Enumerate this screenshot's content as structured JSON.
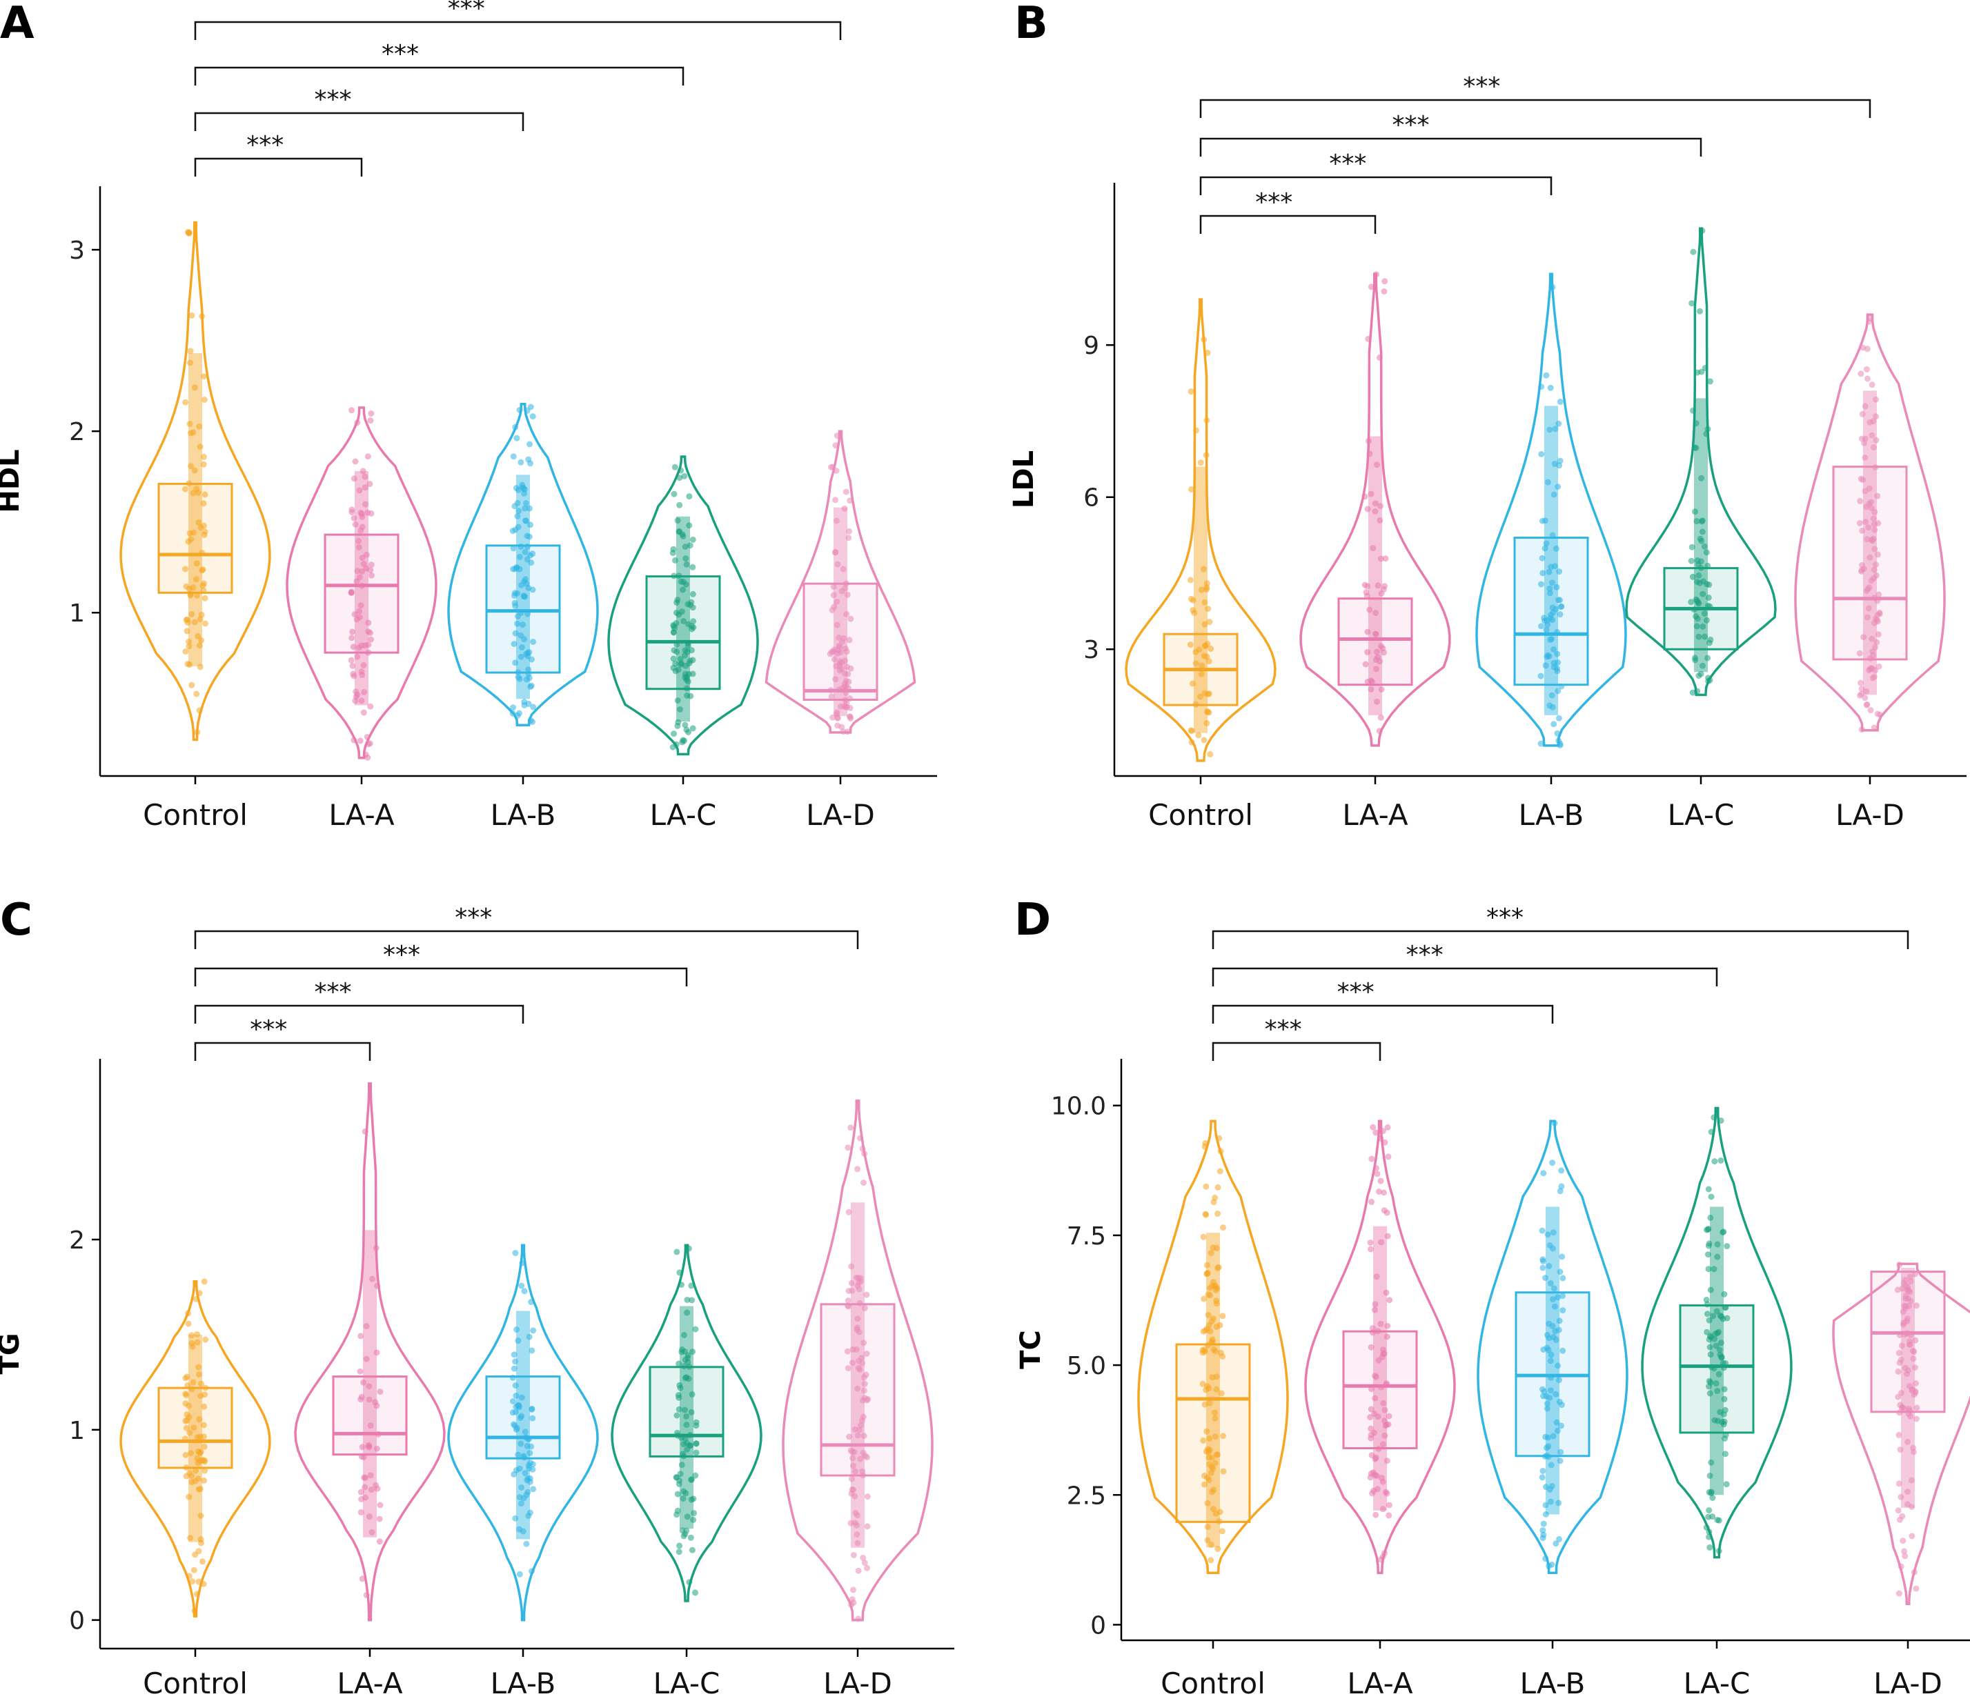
{
  "chart_data": [
    {
      "panel": "A",
      "type": "violin",
      "ylabel": "HDL",
      "ylim": [
        0.1,
        3.35
      ],
      "yticks": [
        1,
        2,
        3
      ],
      "yticks_text": [
        "1",
        "2",
        "3"
      ],
      "categories": [
        "Control",
        "LA-A",
        "LA-B",
        "LA-C",
        "LA-D"
      ],
      "colors": [
        "#F5A623",
        "#E87AAE",
        "#31B5E3",
        "#19A07E",
        "#E98AB8"
      ],
      "boxes": [
        {
          "q1": 1.11,
          "median": 1.32,
          "q3": 1.71,
          "min": 0.3,
          "max": 3.15
        },
        {
          "q1": 0.78,
          "median": 1.15,
          "q3": 1.43,
          "min": 0.2,
          "max": 2.13
        },
        {
          "q1": 0.67,
          "median": 1.01,
          "q3": 1.37,
          "min": 0.38,
          "max": 2.15
        },
        {
          "q1": 0.58,
          "median": 0.84,
          "q3": 1.2,
          "min": 0.22,
          "max": 1.86
        },
        {
          "q1": 0.52,
          "median": 0.57,
          "q3": 1.16,
          "min": 0.34,
          "max": 2.0
        }
      ],
      "comparisons": [
        {
          "from": "Control",
          "to": "LA-A",
          "label": "***"
        },
        {
          "from": "Control",
          "to": "LA-B",
          "label": "***"
        },
        {
          "from": "Control",
          "to": "LA-C",
          "label": "***"
        },
        {
          "from": "Control",
          "to": "LA-D",
          "label": "***"
        }
      ]
    },
    {
      "panel": "B",
      "type": "violin",
      "ylabel": "LDL",
      "ylim": [
        0.5,
        12.2
      ],
      "yticks": [
        3,
        6,
        9
      ],
      "yticks_text": [
        "3",
        "6",
        "9"
      ],
      "categories": [
        "Control",
        "LA-A",
        "LA-B",
        "LA-C",
        "LA-D"
      ],
      "colors": [
        "#F5A623",
        "#E87AAE",
        "#31B5E3",
        "#19A07E",
        "#E98AB8"
      ],
      "boxes": [
        {
          "q1": 1.9,
          "median": 2.6,
          "q3": 3.3,
          "min": 0.8,
          "max": 9.9
        },
        {
          "q1": 2.3,
          "median": 3.2,
          "q3": 4.0,
          "min": 1.1,
          "max": 10.4
        },
        {
          "q1": 2.3,
          "median": 3.3,
          "q3": 5.2,
          "min": 1.1,
          "max": 10.4
        },
        {
          "q1": 3.0,
          "median": 3.8,
          "q3": 4.6,
          "min": 2.1,
          "max": 11.3
        },
        {
          "q1": 2.8,
          "median": 4.0,
          "q3": 6.6,
          "min": 1.4,
          "max": 9.6
        }
      ],
      "comparisons": [
        {
          "from": "Control",
          "to": "LA-A",
          "label": "***"
        },
        {
          "from": "Control",
          "to": "LA-B",
          "label": "***"
        },
        {
          "from": "Control",
          "to": "LA-C",
          "label": "***"
        },
        {
          "from": "Control",
          "to": "LA-D",
          "label": "***"
        }
      ]
    },
    {
      "panel": "C",
      "type": "violin",
      "ylabel": "TG",
      "ylim": [
        -0.15,
        2.95
      ],
      "yticks": [
        0,
        1,
        2
      ],
      "yticks_text": [
        "0",
        "1",
        "2"
      ],
      "categories": [
        "Control",
        "LA-A",
        "LA-B",
        "LA-C",
        "LA-D"
      ],
      "colors": [
        "#F5A623",
        "#E87AAE",
        "#31B5E3",
        "#19A07E",
        "#E98AB8"
      ],
      "boxes": [
        {
          "q1": 0.8,
          "median": 0.94,
          "q3": 1.22,
          "min": 0.02,
          "max": 1.78
        },
        {
          "q1": 0.87,
          "median": 0.98,
          "q3": 1.28,
          "min": 0.0,
          "max": 2.82
        },
        {
          "q1": 0.85,
          "median": 0.96,
          "q3": 1.28,
          "min": 0.0,
          "max": 1.97
        },
        {
          "q1": 0.86,
          "median": 0.97,
          "q3": 1.33,
          "min": 0.1,
          "max": 1.97
        },
        {
          "q1": 0.76,
          "median": 0.92,
          "q3": 1.66,
          "min": 0.0,
          "max": 2.73
        }
      ],
      "comparisons": [
        {
          "from": "Control",
          "to": "LA-A",
          "label": "***"
        },
        {
          "from": "Control",
          "to": "LA-B",
          "label": "***"
        },
        {
          "from": "Control",
          "to": "LA-C",
          "label": "***"
        },
        {
          "from": "Control",
          "to": "LA-D",
          "label": "***"
        }
      ]
    },
    {
      "panel": "D",
      "type": "violin",
      "ylabel": "TC",
      "ylim": [
        -0.3,
        10.9
      ],
      "yticks": [
        0,
        2.5,
        5.0,
        7.5,
        10.0
      ],
      "yticks_text": [
        "0",
        "2.5",
        "5.0",
        "7.5",
        "10.0"
      ],
      "categories": [
        "Control",
        "LA-A",
        "LA-B",
        "LA-C",
        "LA-D"
      ],
      "colors": [
        "#F5A623",
        "#E87AAE",
        "#31B5E3",
        "#19A07E",
        "#E98AB8"
      ],
      "boxes": [
        {
          "q1": 1.98,
          "median": 4.35,
          "q3": 5.4,
          "min": 1.0,
          "max": 9.7
        },
        {
          "q1": 3.4,
          "median": 4.6,
          "q3": 5.65,
          "min": 1.0,
          "max": 9.7
        },
        {
          "q1": 3.25,
          "median": 4.8,
          "q3": 6.4,
          "min": 1.0,
          "max": 9.7
        },
        {
          "q1": 3.7,
          "median": 4.98,
          "q3": 6.15,
          "min": 1.3,
          "max": 9.95
        },
        {
          "q1": 4.1,
          "median": 5.62,
          "q3": 6.8,
          "min": 0.4,
          "max": 6.95
        }
      ],
      "comparisons": [
        {
          "from": "Control",
          "to": "LA-A",
          "label": "***"
        },
        {
          "from": "Control",
          "to": "LA-B",
          "label": "***"
        },
        {
          "from": "Control",
          "to": "LA-C",
          "label": "***"
        },
        {
          "from": "Control",
          "to": "LA-D",
          "label": "***"
        }
      ]
    }
  ]
}
